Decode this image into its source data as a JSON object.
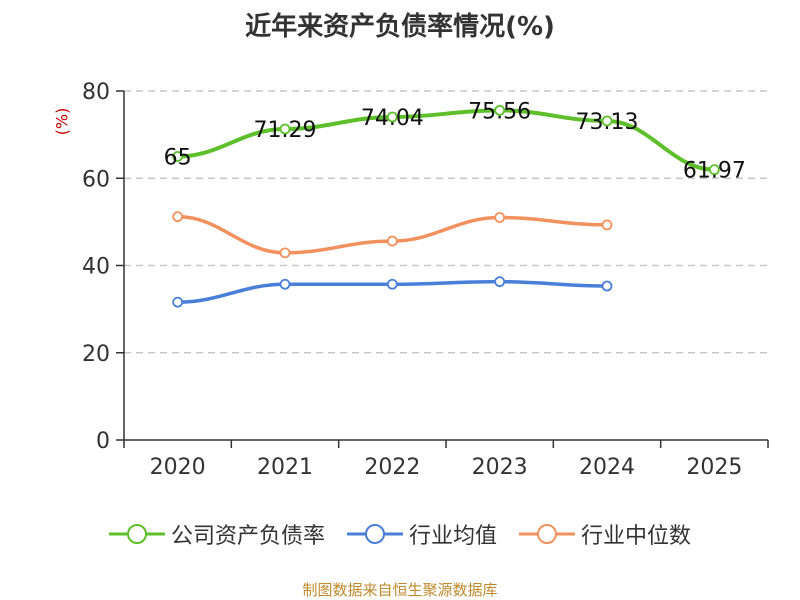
{
  "chart_data": {
    "type": "line",
    "title": "近年来资产负债率情况(%)",
    "ylabel": "(%)",
    "ylim": [
      0,
      80
    ],
    "yticks": [
      0,
      20,
      40,
      60,
      80
    ],
    "grid": true,
    "legend_position": "bottom",
    "categories": [
      "2020",
      "2021",
      "2022",
      "2023",
      "2024",
      "2025"
    ],
    "series": [
      {
        "name": "公司资产负债率",
        "color": "#5dbf2a",
        "values": [
          65,
          71.29,
          74.04,
          75.56,
          73.13,
          61.97
        ],
        "labels": [
          "65",
          "71.29",
          "74.04",
          "75.56",
          "73.13",
          "61.97"
        ]
      },
      {
        "name": "行业均值",
        "color": "#4a7fd9",
        "values": [
          31.6,
          35.7,
          35.7,
          36.3,
          35.3,
          null
        ]
      },
      {
        "name": "行业中位数",
        "color": "#f2915e",
        "values": [
          51.2,
          42.9,
          45.6,
          51.0,
          49.3,
          null
        ]
      }
    ]
  },
  "source": "制图数据来自恒生聚源数据库"
}
